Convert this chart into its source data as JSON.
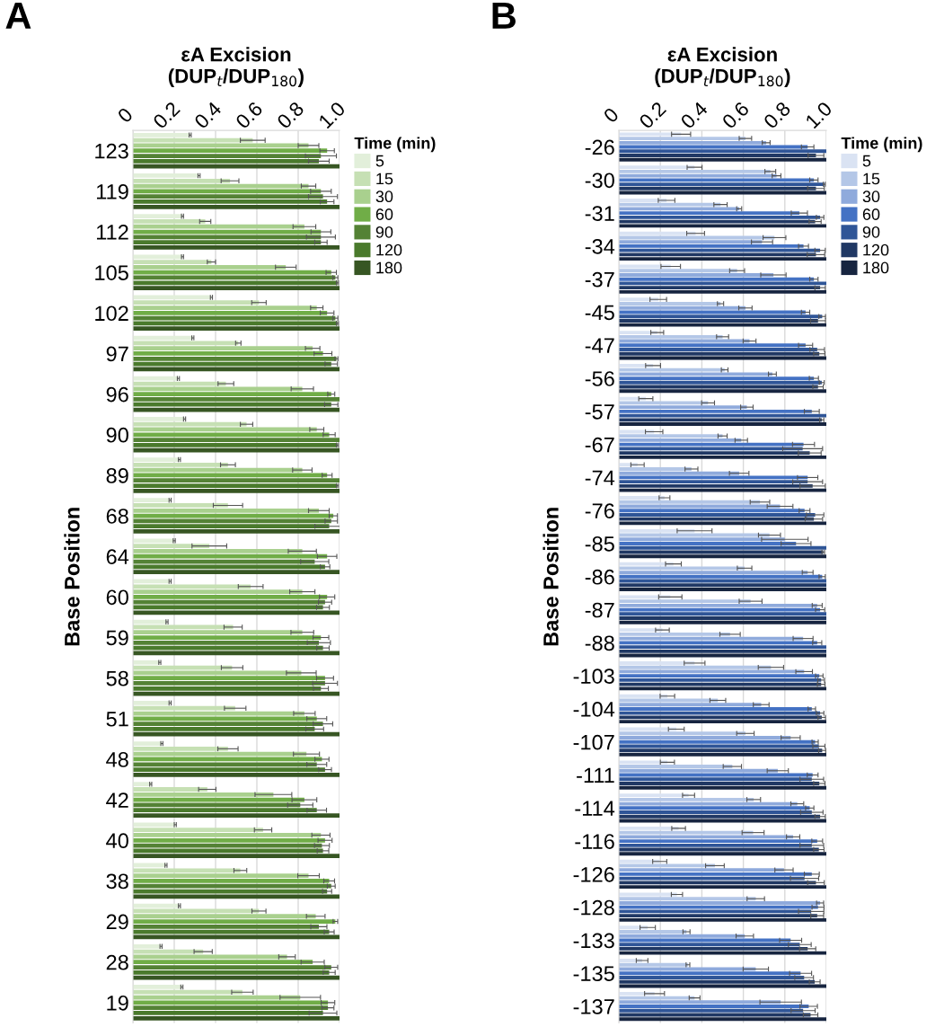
{
  "chart_data": [
    {
      "type": "bar",
      "orientation": "horizontal",
      "title": "εA Excision\n(DUP$_{t}$/DUP$_{180}$)",
      "ylabel": "Base Position",
      "legend_title": "Time (min)",
      "legend": "top right",
      "grid": "x",
      "annotations": [
        "A"
      ],
      "xlim": [
        0,
        1
      ],
      "xticks": [
        0,
        0.2,
        0.4,
        0.6,
        0.8,
        {
          "value": 1,
          "label": "1.0"
        }
      ],
      "categories": [
        "123",
        "119",
        "112",
        "105",
        "102",
        "97",
        "96",
        "90",
        "89",
        "68",
        "64",
        "60",
        "59",
        "58",
        "51",
        "48",
        "42",
        "40",
        "38",
        "29",
        "28",
        "19"
      ],
      "series": [
        {
          "name": "5",
          "color": "#e2efda",
          "values": [
            0.277,
            0.32,
            0.24,
            0.24,
            0.38,
            0.29,
            0.22,
            0.25,
            0.225,
            0.18,
            0.2,
            0.18,
            0.165,
            0.13,
            0.18,
            0.14,
            0.086,
            0.205,
            0.16,
            0.225,
            0.136,
            0.237
          ],
          "errors": [
            0.005,
            0.005,
            0.005,
            0.005,
            0.005,
            0.005,
            0.005,
            0.005,
            0.005,
            0.005,
            0.005,
            0.005,
            0.005,
            0.005,
            0.005,
            0.005,
            0.005,
            0.005,
            0.005,
            0.005,
            0.005,
            0.005
          ]
        },
        {
          "name": "15",
          "color": "#c6e0b4",
          "values": [
            0.58,
            0.47,
            0.35,
            0.38,
            0.61,
            0.51,
            0.45,
            0.55,
            0.46,
            0.46,
            0.37,
            0.57,
            0.485,
            0.48,
            0.495,
            0.46,
            0.36,
            0.63,
            0.52,
            0.61,
            0.34,
            0.53
          ],
          "errors": [
            0.06,
            0.043,
            0.027,
            0.02,
            0.035,
            0.013,
            0.038,
            0.03,
            0.036,
            0.071,
            0.084,
            0.06,
            0.044,
            0.052,
            0.052,
            0.049,
            0.042,
            0.042,
            0.031,
            0.034,
            0.044,
            0.052
          ]
        },
        {
          "name": "30",
          "color": "#a9d08e",
          "values": [
            0.85,
            0.85,
            0.83,
            0.74,
            0.89,
            0.87,
            0.82,
            0.89,
            0.82,
            0.9,
            0.82,
            0.82,
            0.82,
            0.815,
            0.83,
            0.84,
            0.68,
            0.91,
            0.85,
            0.885,
            0.746,
            0.81
          ],
          "errors": [
            0.05,
            0.035,
            0.055,
            0.05,
            0.03,
            0.035,
            0.054,
            0.034,
            0.047,
            0.05,
            0.068,
            0.061,
            0.055,
            0.072,
            0.052,
            0.063,
            0.089,
            0.044,
            0.052,
            0.045,
            0.04,
            0.098
          ]
        },
        {
          "name": "60",
          "color": "#70ad47",
          "values": [
            0.94,
            0.91,
            0.91,
            0.96,
            0.94,
            0.92,
            0.96,
            0.95,
            0.94,
            0.97,
            0.94,
            0.94,
            0.91,
            0.93,
            0.89,
            0.915,
            0.83,
            0.93,
            0.95,
            0.98,
            0.87,
            0.944
          ],
          "errors": [
            0.035,
            0.05,
            0.048,
            0.025,
            0.033,
            0.043,
            0.017,
            0.029,
            0.024,
            0.02,
            0.047,
            0.037,
            0.038,
            0.041,
            0.048,
            0.034,
            0.06,
            0.034,
            0.026,
            0.011,
            0.056,
            0.033
          ]
        },
        {
          "name": "90",
          "color": "#548235",
          "values": [
            0.91,
            0.92,
            0.91,
            0.98,
            0.98,
            0.985,
            1.0,
            1.0,
            1.0,
            0.96,
            0.88,
            0.93,
            0.9,
            0.93,
            0.92,
            0.89,
            0.81,
            0.915,
            0.96,
            0.9,
            0.96,
            0.944
          ],
          "errors": [
            0.075,
            0.07,
            0.07,
            0.012,
            0.012,
            0.007,
            null,
            null,
            null,
            0.03,
            0.068,
            0.032,
            0.056,
            0.06,
            0.047,
            0.048,
            0.061,
            0.036,
            0.019,
            0.039,
            0.031,
            0.029
          ]
        },
        {
          "name": "120",
          "color": "#4a7a2c",
          "values": [
            0.9,
            0.94,
            0.91,
            0.99,
            0.99,
            0.96,
            0.96,
            0.99,
            0.99,
            0.95,
            0.93,
            0.92,
            0.92,
            0.91,
            0.88,
            0.93,
            0.89,
            0.92,
            0.94,
            0.95,
            0.95,
            0.92
          ],
          "errors": [
            0.05,
            0.033,
            0.03,
            0.005,
            0.005,
            0.03,
            0.032,
            0.005,
            0.005,
            0.069,
            0.023,
            0.031,
            0.03,
            0.036,
            0.043,
            0.031,
            0.047,
            0.028,
            0.022,
            0.024,
            0.029,
            0.067
          ]
        },
        {
          "name": "180",
          "color": "#375623",
          "values": [
            1,
            1,
            1,
            1,
            1,
            1,
            1,
            1,
            1,
            1,
            1,
            1,
            1,
            1,
            1,
            1,
            1,
            1,
            1,
            1,
            1,
            1
          ]
        }
      ]
    },
    {
      "type": "bar",
      "orientation": "horizontal",
      "title": "εA Excision\n(DUP$_{t}$/DUP$_{180}$)",
      "ylabel": "Base Position",
      "legend_title": "Time (min)",
      "legend": "top right",
      "grid": "x",
      "annotations": [
        "B"
      ],
      "xlim": [
        0,
        1
      ],
      "xticks": [
        0,
        0.2,
        0.4,
        0.6,
        0.8,
        {
          "value": 1,
          "label": "1.0"
        }
      ],
      "categories": [
        "-26",
        "-30",
        "-31",
        "-34",
        "-37",
        "-45",
        "-47",
        "-56",
        "-57",
        "-67",
        "-74",
        "-76",
        "-85",
        "-86",
        "-87",
        "-88",
        "-103",
        "-104",
        "-107",
        "-111",
        "-114",
        "-116",
        "-126",
        "-128",
        "-133",
        "-135",
        "-137"
      ],
      "series": [
        {
          "name": "5",
          "color": "#dae3f3",
          "values": [
            0.3,
            0.365,
            0.23,
            0.37,
            0.25,
            0.19,
            0.185,
            0.165,
            0.13,
            0.17,
            0.09,
            0.22,
            0.365,
            0.263,
            0.248,
            0.21,
            0.365,
            0.234,
            0.277,
            0.234,
            0.336,
            0.288,
            0.197,
            0.28,
            0.139,
            0.112,
            0.172
          ],
          "errors": [
            0.046,
            0.036,
            0.04,
            0.043,
            0.047,
            0.04,
            0.031,
            0.036,
            0.034,
            0.042,
            0.032,
            0.026,
            0.084,
            0.038,
            0.056,
            0.033,
            0.05,
            0.035,
            0.038,
            0.034,
            0.029,
            0.033,
            0.034,
            0.027,
            0.037,
            0.028,
            0.048
          ]
        },
        {
          "name": "15",
          "color": "#b4c7e7",
          "values": [
            0.61,
            0.73,
            0.49,
            0.75,
            0.57,
            0.49,
            0.5,
            0.51,
            0.43,
            0.5,
            0.35,
            0.68,
            0.726,
            0.606,
            0.635,
            0.536,
            0.733,
            0.477,
            0.61,
            0.547,
            0.65,
            0.647,
            0.463,
            0.66,
            0.326,
            0.333,
            0.365
          ],
          "errors": [
            0.03,
            0.026,
            0.032,
            0.055,
            0.036,
            0.015,
            0.029,
            0.016,
            0.031,
            0.022,
            0.031,
            0.047,
            0.053,
            0.035,
            0.055,
            0.049,
            0.061,
            0.038,
            0.042,
            0.044,
            0.033,
            0.053,
            0.045,
            0.042,
            0.017,
            0.009,
            0.026
          ]
        },
        {
          "name": "30",
          "color": "#8faadc",
          "values": [
            0.71,
            0.76,
            0.58,
            0.69,
            0.745,
            0.61,
            0.63,
            0.74,
            0.617,
            0.59,
            0.58,
            0.777,
            0.8,
            0.91,
            0.956,
            0.888,
            0.893,
            0.686,
            0.828,
            0.766,
            0.86,
            0.84,
            0.796,
            0.97,
            0.607,
            0.66,
            0.78
          ],
          "errors": [
            0.019,
            0.021,
            0.012,
            0.051,
            0.061,
            0.032,
            0.031,
            0.019,
            0.03,
            0.03,
            0.047,
            0.062,
            0.112,
            0.026,
            0.024,
            0.048,
            0.04,
            0.038,
            0.046,
            0.051,
            0.031,
            0.032,
            0.044,
            0.017,
            0.042,
            0.061,
            0.1
          ]
        },
        {
          "name": "60",
          "color": "#4472c4",
          "values": [
            0.91,
            0.94,
            0.87,
            0.89,
            0.94,
            0.9,
            0.9,
            0.94,
            0.93,
            0.89,
            0.91,
            0.895,
            0.854,
            0.98,
            0.97,
            0.956,
            0.966,
            0.93,
            0.946,
            0.934,
            0.92,
            0.956,
            0.93,
            0.96,
            0.828,
            0.876,
            0.915
          ],
          "errors": [
            0.03,
            0.02,
            0.039,
            0.024,
            0.02,
            0.02,
            0.034,
            0.022,
            0.036,
            0.053,
            0.049,
            0.026,
            0.072,
            0.015,
            0.022,
            0.022,
            0.018,
            0.018,
            0.015,
            0.026,
            0.02,
            0.026,
            0.036,
            0.029,
            0.053,
            0.053,
            0.042
          ]
        },
        {
          "name": "90",
          "color": "#2f5597",
          "values": [
            1.0,
            0.99,
            0.97,
            0.97,
            1.0,
            0.98,
            0.956,
            0.978,
            1.0,
            0.886,
            0.91,
            0.946,
            1.0,
            1.0,
            1.0,
            1.0,
            0.975,
            0.97,
            0.964,
            0.93,
            0.93,
            0.93,
            0.895,
            0.927,
            0.872,
            0.893,
            0.888
          ],
          "errors": [
            null,
            0.005,
            0.018,
            0.025,
            null,
            0.016,
            0.035,
            0.012,
            null,
            0.096,
            0.072,
            0.042,
            null,
            null,
            null,
            null,
            0.016,
            0.018,
            0.029,
            0.057,
            0.054,
            0.057,
            0.068,
            0.061,
            0.055,
            0.045,
            0.058
          ]
        },
        {
          "name": "120",
          "color": "#203864",
          "values": [
            0.95,
            0.95,
            0.946,
            0.95,
            0.97,
            0.96,
            0.966,
            0.96,
            0.978,
            0.92,
            0.934,
            0.94,
            0.985,
            1.0,
            1.0,
            1.0,
            0.975,
            0.978,
            0.98,
            0.966,
            0.97,
            0.964,
            0.95,
            0.956,
            0.91,
            0.944,
            0.924
          ],
          "errors": [
            0.038,
            0.04,
            0.029,
            0.042,
            0.025,
            0.036,
            0.027,
            0.025,
            0.01,
            0.055,
            0.061,
            0.042,
            0.006,
            null,
            null,
            null,
            0.018,
            0.018,
            0.017,
            0.027,
            0.025,
            0.025,
            0.04,
            0.031,
            0.039,
            0.026,
            0.035
          ]
        },
        {
          "name": "180",
          "color": "#172540",
          "values": [
            1,
            1,
            1,
            1,
            1,
            1,
            1,
            1,
            1,
            1,
            1,
            1,
            1,
            1,
            1,
            1,
            1,
            1,
            1,
            1,
            1,
            1,
            1,
            1,
            1,
            1,
            1
          ]
        }
      ]
    }
  ]
}
